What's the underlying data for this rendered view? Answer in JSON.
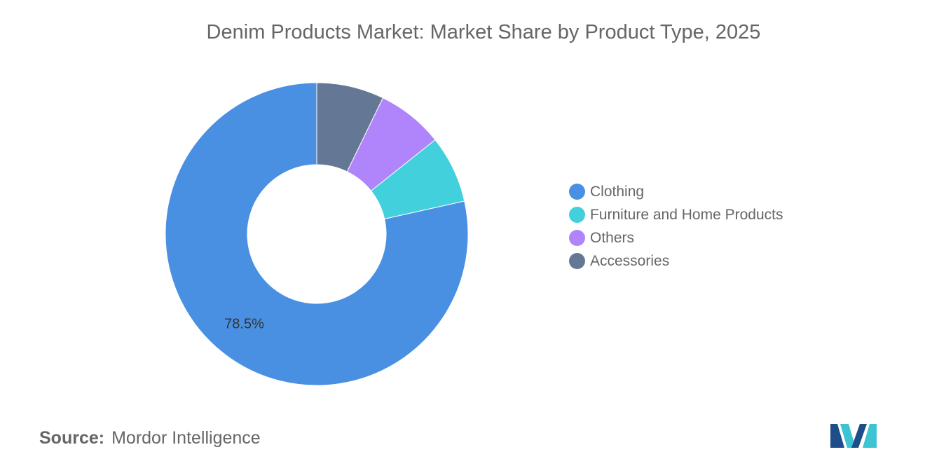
{
  "chart_data": {
    "type": "pie",
    "title": "Denim Products Market: Market Share by Product Type, 2025",
    "categories": [
      "Clothing",
      "Furniture and Home Products",
      "Others",
      "Accessories"
    ],
    "values": [
      78.5,
      7.2,
      7.1,
      7.2
    ],
    "colors": [
      "#4a90e2",
      "#41d0dc",
      "#b084fb",
      "#647896"
    ],
    "data_labels": [
      "78.5%",
      "",
      "",
      ""
    ],
    "legend_position": "right",
    "donut": true
  },
  "source": {
    "prefix": "Source:",
    "name": "Mordor Intelligence"
  },
  "logo": {
    "icon": "mordor-intelligence-logo",
    "colors": [
      "#1d4e89",
      "#3cc3d4"
    ]
  }
}
